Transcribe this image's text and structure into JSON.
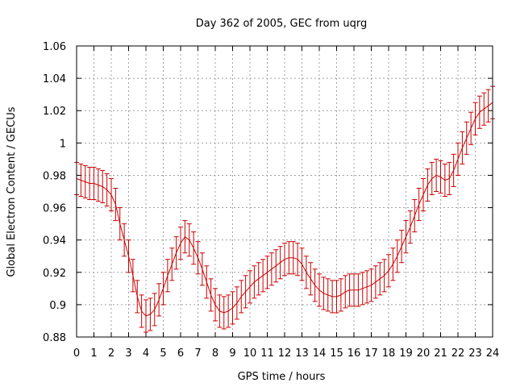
{
  "chart_data": {
    "type": "line",
    "title": "Day 362 of 2005, GEC from uqrg",
    "xlabel": "GPS time / hours",
    "ylabel": "Global Electron Content / GECUs",
    "xlim": [
      0,
      24
    ],
    "ylim": [
      0.88,
      1.06
    ],
    "xticks": [
      "0",
      "1",
      "2",
      "3",
      "4",
      "5",
      "6",
      "7",
      "8",
      "9",
      "10",
      "11",
      "12",
      "13",
      "14",
      "15",
      "16",
      "17",
      "18",
      "19",
      "20",
      "21",
      "22",
      "23",
      "24"
    ],
    "yticks": [
      "0.88",
      "0.9",
      "0.92",
      "0.94",
      "0.96",
      "0.98",
      "1",
      "1.02",
      "1.04",
      "1.06"
    ],
    "grid": true,
    "legend": "none",
    "colors": {
      "series": "#cc0000",
      "grid": "#a0a0a0",
      "axis": "#000000"
    },
    "series": [
      {
        "x": [
          0,
          0.25,
          0.5,
          0.75,
          1,
          1.25,
          1.5,
          1.75,
          2,
          2.25,
          2.5,
          2.75,
          3,
          3.25,
          3.5,
          3.75,
          4,
          4.25,
          4.5,
          4.75,
          5,
          5.25,
          5.5,
          5.75,
          6,
          6.25,
          6.5,
          6.75,
          7,
          7.25,
          7.5,
          7.75,
          8,
          8.25,
          8.5,
          8.75,
          9,
          9.25,
          9.5,
          9.75,
          10,
          10.25,
          10.5,
          10.75,
          11,
          11.25,
          11.5,
          11.75,
          12,
          12.25,
          12.5,
          12.75,
          13,
          13.25,
          13.5,
          13.75,
          14,
          14.25,
          14.5,
          14.75,
          15,
          15.25,
          15.5,
          15.75,
          16,
          16.25,
          16.5,
          16.75,
          17,
          17.25,
          17.5,
          17.75,
          18,
          18.25,
          18.5,
          18.75,
          19,
          19.25,
          19.5,
          19.75,
          20,
          20.25,
          20.5,
          20.75,
          21,
          21.25,
          21.5,
          21.75,
          22,
          22.25,
          22.5,
          22.75,
          23,
          23.25,
          23.5,
          23.75,
          24
        ],
        "y": [
          0.978,
          0.977,
          0.976,
          0.975,
          0.975,
          0.974,
          0.973,
          0.971,
          0.968,
          0.962,
          0.95,
          0.94,
          0.93,
          0.918,
          0.905,
          0.896,
          0.893,
          0.894,
          0.897,
          0.903,
          0.91,
          0.918,
          0.925,
          0.932,
          0.938,
          0.942,
          0.94,
          0.935,
          0.929,
          0.922,
          0.914,
          0.906,
          0.9,
          0.896,
          0.895,
          0.896,
          0.898,
          0.901,
          0.905,
          0.908,
          0.911,
          0.914,
          0.916,
          0.918,
          0.92,
          0.922,
          0.924,
          0.926,
          0.928,
          0.929,
          0.929,
          0.928,
          0.925,
          0.92,
          0.916,
          0.912,
          0.909,
          0.907,
          0.906,
          0.905,
          0.905,
          0.906,
          0.908,
          0.909,
          0.909,
          0.909,
          0.91,
          0.911,
          0.912,
          0.914,
          0.916,
          0.918,
          0.921,
          0.925,
          0.93,
          0.936,
          0.942,
          0.948,
          0.955,
          0.962,
          0.968,
          0.974,
          0.978,
          0.98,
          0.979,
          0.977,
          0.978,
          0.983,
          0.99,
          0.997,
          1.003,
          1.009,
          1.015,
          1.019,
          1.021,
          1.023,
          1.025
        ],
        "err": 0.01
      }
    ]
  }
}
